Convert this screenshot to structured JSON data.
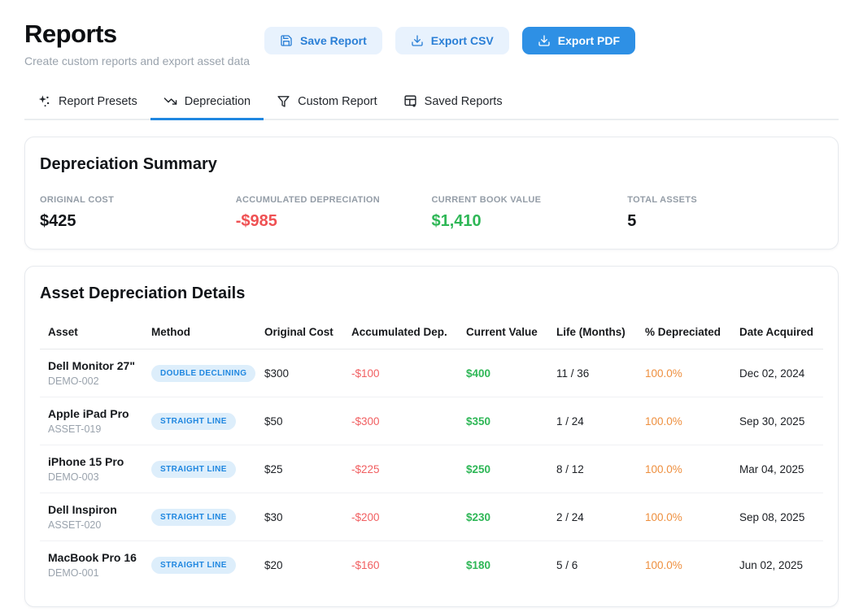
{
  "header": {
    "title": "Reports",
    "subtitle": "Create custom reports and export asset data",
    "buttons": [
      {
        "label": "Save Report",
        "icon": "save-icon",
        "style": "soft"
      },
      {
        "label": "Export CSV",
        "icon": "download-icon",
        "style": "soft"
      },
      {
        "label": "Export PDF",
        "icon": "download-icon",
        "style": "solid"
      }
    ]
  },
  "tabs": [
    {
      "label": "Report Presets",
      "icon": "sparkles-icon",
      "active": false
    },
    {
      "label": "Depreciation",
      "icon": "trending-down-icon",
      "active": true
    },
    {
      "label": "Custom Report",
      "icon": "filter-icon",
      "active": false
    },
    {
      "label": "Saved Reports",
      "icon": "table-gear-icon",
      "active": false
    }
  ],
  "summary": {
    "title": "Depreciation Summary",
    "stats": [
      {
        "label": "ORIGINAL COST",
        "value": "$425",
        "color": "dark"
      },
      {
        "label": "ACCUMULATED DEPRECIATION",
        "value": "-$985",
        "color": "red"
      },
      {
        "label": "CURRENT BOOK VALUE",
        "value": "$1,410",
        "color": "green"
      },
      {
        "label": "TOTAL ASSETS",
        "value": "5",
        "color": "dark"
      }
    ]
  },
  "details": {
    "title": "Asset Depreciation Details",
    "columns": [
      "Asset",
      "Method",
      "Original Cost",
      "Accumulated Dep.",
      "Current Value",
      "Life (Months)",
      "% Depreciated",
      "Date Acquired"
    ],
    "rows": [
      {
        "asset": "Dell Monitor 27\"",
        "code": "DEMO-002",
        "method": "DOUBLE DECLINING",
        "original_cost": "$300",
        "accumulated_dep": "-$100",
        "current_value": "$400",
        "life": "11 / 36",
        "pct_depreciated": "100.0%",
        "date_acquired": "Dec 02, 2024"
      },
      {
        "asset": "Apple iPad Pro",
        "code": "ASSET-019",
        "method": "STRAIGHT LINE",
        "original_cost": "$50",
        "accumulated_dep": "-$300",
        "current_value": "$350",
        "life": "1 / 24",
        "pct_depreciated": "100.0%",
        "date_acquired": "Sep 30, 2025"
      },
      {
        "asset": "iPhone 15 Pro",
        "code": "DEMO-003",
        "method": "STRAIGHT LINE",
        "original_cost": "$25",
        "accumulated_dep": "-$225",
        "current_value": "$250",
        "life": "8 / 12",
        "pct_depreciated": "100.0%",
        "date_acquired": "Mar 04, 2025"
      },
      {
        "asset": "Dell Inspiron",
        "code": "ASSET-020",
        "method": "STRAIGHT LINE",
        "original_cost": "$30",
        "accumulated_dep": "-$200",
        "current_value": "$230",
        "life": "2 / 24",
        "pct_depreciated": "100.0%",
        "date_acquired": "Sep 08, 2025"
      },
      {
        "asset": "MacBook Pro 16",
        "code": "DEMO-001",
        "method": "STRAIGHT LINE",
        "original_cost": "$20",
        "accumulated_dep": "-$160",
        "current_value": "$180",
        "life": "5 / 6",
        "pct_depreciated": "100.0%",
        "date_acquired": "Jun 02, 2025"
      }
    ]
  },
  "colors": {
    "accent_blue": "#2e90e5",
    "soft_blue_bg": "#e8f2fd",
    "blue_text": "#2a7fd6",
    "badge_bg": "#ddeefb",
    "negative_red": "#ef5153",
    "positive_green": "#2fb757",
    "percent_orange": "#ee8f3e",
    "label_gray": "#949da7",
    "active_tab_underline": "#1f87e0"
  }
}
